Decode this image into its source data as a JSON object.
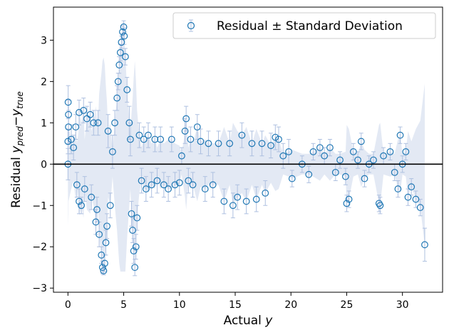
{
  "chart_data": {
    "type": "scatter",
    "xlabel_main": "Actual",
    "xlabel_var": "y",
    "ylabel_main": "Residual",
    "ylabel_pred": "y",
    "ylabel_pred_sub": "pred",
    "ylabel_minus": "−",
    "ylabel_true": "y",
    "ylabel_true_sub": "true",
    "xlim": [
      -1.3,
      33.6
    ],
    "ylim": [
      -3.1,
      3.8
    ],
    "xticks": [
      0,
      5,
      10,
      15,
      20,
      25,
      30
    ],
    "yticks": [
      -3,
      -2,
      -1,
      0,
      1,
      2,
      3
    ],
    "xtick_labels": [
      "0",
      "5",
      "10",
      "15",
      "20",
      "25",
      "30"
    ],
    "ytick_labels": [
      "−3",
      "−2",
      "−1",
      "0",
      "1",
      "2",
      "3"
    ],
    "reference_line_y": 0,
    "grid": false,
    "legend_position": "top-right",
    "colors": {
      "marker": "#1f77b4",
      "errorbar": "#aec0e0",
      "reference_line": "#000000"
    },
    "series": [
      {
        "name": "Residual ± Standard Deviation",
        "marker": "open-circle",
        "points": [
          [
            0.0,
            0.0,
            0.38
          ],
          [
            0.0,
            0.55,
            0.3
          ],
          [
            0.02,
            1.5,
            0.4
          ],
          [
            0.05,
            1.2,
            0.35
          ],
          [
            0.05,
            0.9,
            0.4
          ],
          [
            0.3,
            0.6,
            0.35
          ],
          [
            0.5,
            0.4,
            0.3
          ],
          [
            0.7,
            0.9,
            0.3
          ],
          [
            0.8,
            -0.5,
            0.3
          ],
          [
            1.0,
            -0.9,
            0.3
          ],
          [
            1.0,
            1.25,
            0.3
          ],
          [
            1.2,
            -1.0,
            0.2
          ],
          [
            1.4,
            1.3,
            0.3
          ],
          [
            1.5,
            -0.6,
            0.3
          ],
          [
            1.7,
            1.1,
            0.3
          ],
          [
            2.0,
            1.2,
            0.3
          ],
          [
            2.1,
            -0.8,
            0.3
          ],
          [
            2.3,
            1.0,
            0.3
          ],
          [
            2.5,
            -1.4,
            0.3
          ],
          [
            2.6,
            -1.1,
            0.3
          ],
          [
            2.7,
            1.0,
            0.3
          ],
          [
            2.8,
            -1.7,
            0.3
          ],
          [
            3.0,
            -2.2,
            0.2
          ],
          [
            3.1,
            -2.5,
            0.15
          ],
          [
            3.2,
            -2.58,
            0.1
          ],
          [
            3.3,
            -2.4,
            0.2
          ],
          [
            3.4,
            -1.9,
            0.3
          ],
          [
            3.5,
            -1.5,
            0.3
          ],
          [
            3.6,
            0.8,
            0.4
          ],
          [
            3.8,
            -1.0,
            0.3
          ],
          [
            4.0,
            0.3,
            0.4
          ],
          [
            4.2,
            1.0,
            0.3
          ],
          [
            4.4,
            1.6,
            0.3
          ],
          [
            4.5,
            2.0,
            0.2
          ],
          [
            4.6,
            2.4,
            0.2
          ],
          [
            4.7,
            2.7,
            0.2
          ],
          [
            4.8,
            2.95,
            0.15
          ],
          [
            4.9,
            3.2,
            0.15
          ],
          [
            5.0,
            3.32,
            0.15
          ],
          [
            5.05,
            3.1,
            0.2
          ],
          [
            5.15,
            2.6,
            0.2
          ],
          [
            5.3,
            1.8,
            0.3
          ],
          [
            5.5,
            1.0,
            0.4
          ],
          [
            5.6,
            0.6,
            0.4
          ],
          [
            5.7,
            -1.2,
            0.3
          ],
          [
            5.8,
            -1.6,
            0.3
          ],
          [
            5.9,
            -2.1,
            0.3
          ],
          [
            6.0,
            -2.5,
            0.2
          ],
          [
            6.1,
            -2.0,
            0.3
          ],
          [
            6.2,
            -1.3,
            0.3
          ],
          [
            6.4,
            0.7,
            0.3
          ],
          [
            6.6,
            -0.4,
            0.3
          ],
          [
            6.8,
            0.6,
            0.3
          ],
          [
            7.0,
            -0.6,
            0.3
          ],
          [
            7.2,
            0.7,
            0.3
          ],
          [
            7.5,
            -0.5,
            0.3
          ],
          [
            7.8,
            0.6,
            0.3
          ],
          [
            8.0,
            -0.4,
            0.3
          ],
          [
            8.3,
            0.6,
            0.3
          ],
          [
            8.6,
            -0.5,
            0.3
          ],
          [
            9.0,
            -0.6,
            0.3
          ],
          [
            9.3,
            0.6,
            0.3
          ],
          [
            9.6,
            -0.5,
            0.3
          ],
          [
            10.0,
            -0.45,
            0.3
          ],
          [
            10.2,
            0.2,
            0.2
          ],
          [
            10.5,
            0.8,
            0.3
          ],
          [
            10.6,
            1.1,
            0.3
          ],
          [
            10.8,
            -0.4,
            0.3
          ],
          [
            11.0,
            0.6,
            0.3
          ],
          [
            11.2,
            -0.5,
            0.3
          ],
          [
            11.6,
            0.9,
            0.3
          ],
          [
            11.9,
            0.55,
            0.3
          ],
          [
            12.3,
            -0.6,
            0.3
          ],
          [
            12.6,
            0.5,
            0.3
          ],
          [
            13.0,
            -0.5,
            0.3
          ],
          [
            13.5,
            0.5,
            0.3
          ],
          [
            14.0,
            -0.9,
            0.3
          ],
          [
            14.5,
            0.5,
            0.3
          ],
          [
            14.8,
            -1.0,
            0.3
          ],
          [
            15.2,
            -0.8,
            0.3
          ],
          [
            15.6,
            0.7,
            0.3
          ],
          [
            16.0,
            -0.9,
            0.3
          ],
          [
            16.5,
            0.5,
            0.3
          ],
          [
            16.9,
            -0.85,
            0.3
          ],
          [
            17.4,
            0.5,
            0.3
          ],
          [
            17.7,
            -0.7,
            0.3
          ],
          [
            18.2,
            0.45,
            0.3
          ],
          [
            18.6,
            0.65,
            0.3
          ],
          [
            18.9,
            0.6,
            0.3
          ],
          [
            19.3,
            0.2,
            0.3
          ],
          [
            19.8,
            0.3,
            0.3
          ],
          [
            20.1,
            -0.35,
            0.2
          ],
          [
            21.0,
            0.0,
            0.2
          ],
          [
            21.6,
            -0.25,
            0.2
          ],
          [
            22.0,
            0.3,
            0.2
          ],
          [
            22.6,
            0.4,
            0.2
          ],
          [
            23.0,
            0.2,
            0.2
          ],
          [
            23.5,
            0.4,
            0.2
          ],
          [
            24.0,
            -0.2,
            0.2
          ],
          [
            24.4,
            0.1,
            0.2
          ],
          [
            24.9,
            -0.3,
            0.2
          ],
          [
            25.0,
            -0.95,
            0.2
          ],
          [
            25.2,
            -0.85,
            0.2
          ],
          [
            25.6,
            0.3,
            0.2
          ],
          [
            26.0,
            0.1,
            0.2
          ],
          [
            26.3,
            0.55,
            0.2
          ],
          [
            26.6,
            -0.35,
            0.2
          ],
          [
            27.0,
            0.0,
            0.2
          ],
          [
            27.4,
            0.1,
            0.2
          ],
          [
            27.9,
            -0.95,
            0.2
          ],
          [
            28.0,
            -1.0,
            0.2
          ],
          [
            28.3,
            0.2,
            0.2
          ],
          [
            28.9,
            0.3,
            0.2
          ],
          [
            29.3,
            -0.2,
            0.2
          ],
          [
            29.6,
            -0.6,
            0.2
          ],
          [
            29.8,
            0.7,
            0.2
          ],
          [
            30.0,
            0.0,
            0.2
          ],
          [
            30.3,
            0.3,
            0.2
          ],
          [
            30.5,
            -0.8,
            0.2
          ],
          [
            30.8,
            -0.55,
            0.2
          ],
          [
            31.2,
            -0.85,
            0.2
          ],
          [
            31.6,
            -1.05,
            0.2
          ],
          [
            32.0,
            -1.95,
            0.4
          ]
        ]
      }
    ]
  }
}
